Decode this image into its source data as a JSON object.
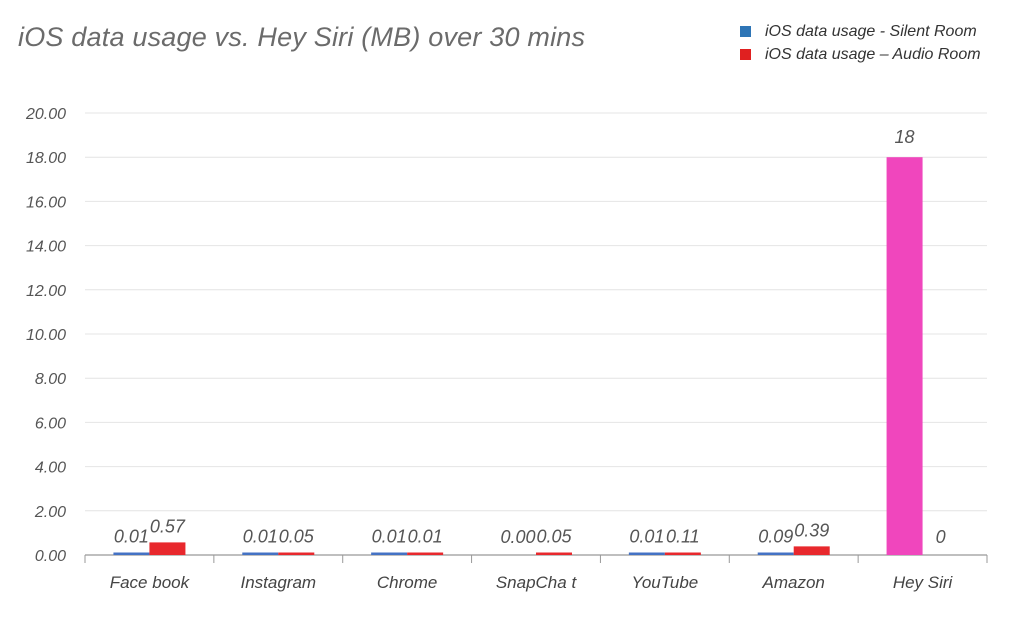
{
  "chart_data": {
    "type": "bar",
    "title": "iOS data usage vs. Hey Siri (MB) over 30 mins",
    "xlabel": "",
    "ylabel": "",
    "ylim": [
      0,
      20
    ],
    "yticks": [
      "0.00",
      "2.00",
      "4.00",
      "6.00",
      "8.00",
      "10.00",
      "12.00",
      "14.00",
      "16.00",
      "18.00",
      "20.00"
    ],
    "grid": true,
    "legend_position": "top-right",
    "categories": [
      "Face book",
      "Instagram",
      "Chrome",
      "SnapCha t",
      "YouTube",
      "Amazon",
      "Hey Siri"
    ],
    "series": [
      {
        "name": "iOS data usage - Silent Room",
        "color": "#2e75b6",
        "values": [
          0.01,
          0.01,
          0.01,
          0.0,
          0.01,
          0.09,
          18
        ],
        "labels": [
          "0.01",
          "0.01",
          "0.01",
          "0.00",
          "0.01",
          "0.09",
          "18"
        ],
        "special_colors": {
          "6": "#f046bd"
        }
      },
      {
        "name": "iOS data usage – Audio Room",
        "color": "#c00000",
        "values": [
          0.57,
          0.05,
          0.01,
          0.05,
          0.11,
          0.39,
          0
        ],
        "labels": [
          "0.57",
          "0.05",
          "0.01",
          "0.05",
          "0.11",
          "0.39",
          "0"
        ]
      }
    ]
  }
}
